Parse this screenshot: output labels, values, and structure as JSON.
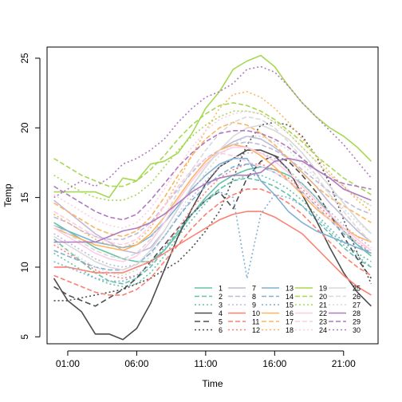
{
  "chart_data": {
    "type": "line",
    "title": "",
    "xlabel": "Time",
    "ylabel": "Temp",
    "x_ticks": [
      {
        "h": 1,
        "label": "01:00"
      },
      {
        "h": 6,
        "label": "06:00"
      },
      {
        "h": 11,
        "label": "11:00"
      },
      {
        "h": 16,
        "label": "16:00"
      },
      {
        "h": 21,
        "label": "21:00"
      }
    ],
    "y_ticks": [
      5,
      10,
      15,
      20,
      25
    ],
    "xlim": [
      -0.5,
      23.5
    ],
    "ylim": [
      4.5,
      25.8
    ],
    "legend_position": "bottom-right",
    "x": [
      0,
      1,
      2,
      3,
      4,
      5,
      6,
      7,
      8,
      9,
      10,
      11,
      12,
      13,
      14,
      15,
      16,
      17,
      18,
      19,
      20,
      21,
      22,
      23
    ],
    "series": [
      {
        "name": "1",
        "color": "#66C2A5",
        "dash": "",
        "values": [
          13.2,
          12.6,
          12.0,
          11.4,
          11.0,
          10.6,
          10.4,
          10.4,
          11.2,
          12.4,
          13.8,
          15.0,
          16.0,
          16.6,
          17.0,
          17.2,
          17.0,
          16.6,
          16.0,
          15.0,
          13.8,
          12.6,
          11.6,
          10.8
        ]
      },
      {
        "name": "2",
        "color": "#66C2A5",
        "dash": "6,3",
        "values": [
          12.0,
          11.2,
          10.4,
          9.6,
          9.0,
          8.8,
          9.2,
          10.0,
          11.2,
          12.6,
          13.8,
          14.8,
          15.6,
          16.2,
          16.4,
          16.2,
          15.8,
          15.2,
          14.4,
          13.4,
          12.4,
          11.4,
          10.6,
          10.0
        ]
      },
      {
        "name": "3",
        "color": "#66C2A5",
        "dash": "2,3",
        "values": [
          11.0,
          10.4,
          9.8,
          9.2,
          8.8,
          8.6,
          8.8,
          9.6,
          10.8,
          12.2,
          13.4,
          14.6,
          15.6,
          16.2,
          16.6,
          16.6,
          16.2,
          15.6,
          14.8,
          13.8,
          12.8,
          11.8,
          11.0,
          10.4
        ]
      },
      {
        "name": "4",
        "color": "#4D4D4D",
        "dash": "",
        "values": [
          9.2,
          7.6,
          6.8,
          5.2,
          5.2,
          4.8,
          5.6,
          7.4,
          9.8,
          12.2,
          14.2,
          16.0,
          17.2,
          17.8,
          18.4,
          18.4,
          18.0,
          17.0,
          15.2,
          13.4,
          11.4,
          9.6,
          8.2,
          7.2
        ]
      },
      {
        "name": "5",
        "color": "#4D4D4D",
        "dash": "7,4",
        "values": [
          8.6,
          8.0,
          7.6,
          7.2,
          7.8,
          8.4,
          9.2,
          10.4,
          11.6,
          12.8,
          13.8,
          14.8,
          15.4,
          14.2,
          16.4,
          17.6,
          18.0,
          17.6,
          16.6,
          15.4,
          13.8,
          12.2,
          10.6,
          9.2
        ]
      },
      {
        "name": "6",
        "color": "#4D4D4D",
        "dash": "2,3",
        "values": [
          7.6,
          7.6,
          7.8,
          8.0,
          8.2,
          8.4,
          8.8,
          9.2,
          9.8,
          10.4,
          11.4,
          12.6,
          14.0,
          16.4,
          18.8,
          20.2,
          20.4,
          20.2,
          19.4,
          18.0,
          16.0,
          13.4,
          11.0,
          8.8
        ]
      },
      {
        "name": "7",
        "color": "#BEBADA",
        "dash": "",
        "values": [
          14.8,
          14.0,
          13.2,
          12.4,
          11.8,
          11.2,
          11.0,
          11.4,
          12.6,
          14.2,
          15.8,
          17.2,
          18.4,
          19.0,
          19.4,
          19.2,
          18.6,
          17.8,
          16.8,
          15.8,
          14.6,
          13.6,
          12.6,
          11.8
        ]
      },
      {
        "name": "8",
        "color": "#BEBADA",
        "dash": "6,3",
        "values": [
          13.6,
          13.2,
          12.6,
          12.2,
          12.0,
          12.0,
          12.4,
          13.2,
          14.4,
          15.6,
          16.8,
          17.8,
          18.4,
          18.8,
          19.0,
          18.8,
          18.4,
          17.8,
          17.0,
          16.2,
          15.4,
          14.8,
          14.2,
          13.8
        ]
      },
      {
        "name": "9",
        "color": "#BEBADA",
        "dash": "2,3",
        "values": [
          12.4,
          11.8,
          11.2,
          10.6,
          10.2,
          10.0,
          10.2,
          11.0,
          12.2,
          13.6,
          15.0,
          16.2,
          17.2,
          17.8,
          18.2,
          18.2,
          17.8,
          17.0,
          16.0,
          15.0,
          14.0,
          13.0,
          12.2,
          11.4
        ]
      },
      {
        "name": "10",
        "color": "#FB8072",
        "dash": "",
        "values": [
          10.0,
          10.0,
          9.8,
          9.6,
          9.6,
          9.6,
          10.0,
          10.4,
          11.0,
          11.6,
          12.2,
          12.8,
          13.4,
          13.8,
          14.0,
          14.0,
          13.6,
          13.0,
          12.4,
          11.4,
          10.4,
          9.4,
          8.6,
          8.0
        ]
      },
      {
        "name": "11",
        "color": "#FB8072",
        "dash": "6,3",
        "values": [
          9.4,
          9.0,
          8.6,
          8.2,
          8.0,
          8.0,
          8.4,
          9.2,
          10.4,
          11.6,
          12.8,
          13.8,
          14.6,
          15.2,
          15.6,
          15.6,
          15.2,
          14.6,
          13.8,
          12.8,
          11.8,
          10.8,
          10.0,
          9.4
        ]
      },
      {
        "name": "12",
        "color": "#FB8072",
        "dash": "2,3",
        "values": [
          11.6,
          11.0,
          10.4,
          9.8,
          9.4,
          9.2,
          9.4,
          10.2,
          11.4,
          12.8,
          14.2,
          15.4,
          16.4,
          17.0,
          17.4,
          17.4,
          17.0,
          16.4,
          15.6,
          14.6,
          13.6,
          12.6,
          11.8,
          11.0
        ]
      },
      {
        "name": "13",
        "color": "#80B1D3",
        "dash": "",
        "values": [
          13.0,
          12.6,
          12.2,
          11.8,
          11.6,
          11.4,
          11.6,
          12.2,
          13.2,
          14.4,
          15.6,
          16.6,
          17.4,
          17.8,
          17.8,
          16.2,
          15.2,
          14.0,
          13.2,
          12.6,
          12.2,
          11.8,
          11.4,
          11.0
        ]
      },
      {
        "name": "14",
        "color": "#80B1D3",
        "dash": "6,3",
        "values": [
          11.2,
          10.8,
          10.4,
          10.0,
          9.8,
          9.8,
          10.2,
          11.0,
          12.2,
          13.6,
          14.8,
          15.8,
          16.6,
          17.2,
          17.4,
          17.2,
          16.8,
          16.2,
          15.4,
          14.4,
          13.4,
          12.4,
          11.6,
          11.0
        ]
      },
      {
        "name": "15",
        "color": "#80B1D3",
        "dash": "2,3",
        "values": [
          10.4,
          10.0,
          9.6,
          9.2,
          9.0,
          9.0,
          9.4,
          10.2,
          11.4,
          12.6,
          13.8,
          14.8,
          15.4,
          15.0,
          9.2,
          13.8,
          15.2,
          15.0,
          14.4,
          13.6,
          12.6,
          11.6,
          10.8,
          10.0
        ]
      },
      {
        "name": "16",
        "color": "#FDB462",
        "dash": "",
        "values": [
          12.8,
          12.4,
          12.0,
          11.6,
          11.4,
          11.2,
          11.6,
          12.4,
          13.6,
          15.0,
          16.4,
          17.6,
          18.4,
          18.8,
          18.6,
          18.0,
          17.2,
          16.2,
          15.2,
          14.2,
          13.4,
          12.8,
          12.2,
          11.8
        ]
      },
      {
        "name": "17",
        "color": "#FDB462",
        "dash": "6,3",
        "values": [
          14.6,
          14.0,
          13.4,
          12.8,
          12.4,
          12.2,
          12.6,
          13.6,
          15.0,
          16.6,
          18.0,
          19.2,
          20.0,
          20.4,
          20.2,
          19.6,
          18.8,
          17.8,
          16.8,
          15.8,
          15.0,
          14.4,
          13.8,
          13.2
        ]
      },
      {
        "name": "18",
        "color": "#FDB462",
        "dash": "2,3",
        "values": [
          13.8,
          13.2,
          12.6,
          12.0,
          11.6,
          11.4,
          11.8,
          12.8,
          14.4,
          16.2,
          18.0,
          19.8,
          21.4,
          22.4,
          22.6,
          22.2,
          21.4,
          20.4,
          19.2,
          18.0,
          16.8,
          15.8,
          14.8,
          14.0
        ]
      },
      {
        "name": "19",
        "color": "#A6D854",
        "dash": "",
        "values": [
          15.4,
          15.4,
          15.4,
          15.4,
          15.0,
          16.4,
          16.2,
          17.4,
          17.6,
          18.2,
          19.6,
          21.4,
          22.6,
          24.2,
          24.8,
          25.2,
          24.4,
          23.0,
          21.8,
          20.8,
          20.0,
          19.4,
          18.6,
          17.6
        ]
      },
      {
        "name": "20",
        "color": "#A6D854",
        "dash": "6,3",
        "values": [
          17.8,
          17.2,
          16.6,
          16.2,
          15.8,
          15.8,
          16.2,
          17.0,
          18.0,
          19.2,
          20.2,
          21.0,
          21.6,
          21.8,
          21.6,
          21.2,
          20.6,
          19.8,
          19.0,
          18.0,
          17.2,
          16.4,
          15.8,
          15.2
        ]
      },
      {
        "name": "21",
        "color": "#A6D854",
        "dash": "2,3",
        "values": [
          16.6,
          16.0,
          15.4,
          15.0,
          14.8,
          14.8,
          15.2,
          16.0,
          17.2,
          18.4,
          19.4,
          20.2,
          20.8,
          21.2,
          21.2,
          21.0,
          20.4,
          19.6,
          18.6,
          17.6,
          16.6,
          15.8,
          15.0,
          14.4
        ]
      },
      {
        "name": "22",
        "color": "#FCCDE5",
        "dash": "",
        "values": [
          12.8,
          12.2,
          11.6,
          11.0,
          10.6,
          10.4,
          10.8,
          11.8,
          13.2,
          14.8,
          16.2,
          17.4,
          18.2,
          18.6,
          18.6,
          18.2,
          17.6,
          16.8,
          15.8,
          14.8,
          13.8,
          12.8,
          12.0,
          11.2
        ]
      },
      {
        "name": "23",
        "color": "#FCCDE5",
        "dash": "6,3",
        "values": [
          14.0,
          13.4,
          12.8,
          12.2,
          11.8,
          11.6,
          12.0,
          13.0,
          14.4,
          15.8,
          17.0,
          17.8,
          18.2,
          18.0,
          17.6,
          17.2,
          16.8,
          16.2,
          15.4,
          14.4,
          13.4,
          12.6,
          11.8,
          11.2
        ]
      },
      {
        "name": "24",
        "color": "#FCCDE5",
        "dash": "2,3",
        "values": [
          15.2,
          14.6,
          14.0,
          13.4,
          13.0,
          12.8,
          13.2,
          14.2,
          15.6,
          17.2,
          18.6,
          19.8,
          20.6,
          21.0,
          21.2,
          21.0,
          20.4,
          19.6,
          18.6,
          17.6,
          16.6,
          15.8,
          15.0,
          14.4
        ]
      },
      {
        "name": "25",
        "color": "#D9D9D9",
        "dash": "",
        "values": [
          12.2,
          11.6,
          11.0,
          10.4,
          10.0,
          9.8,
          10.2,
          11.2,
          12.6,
          14.2,
          15.8,
          17.2,
          18.4,
          19.4,
          20.0,
          20.2,
          19.8,
          19.2,
          18.2,
          17.0,
          15.8,
          14.6,
          13.4,
          12.4
        ]
      },
      {
        "name": "26",
        "color": "#D9D9D9",
        "dash": "6,3",
        "values": [
          13.0,
          12.4,
          11.8,
          11.2,
          10.8,
          10.6,
          11.0,
          12.0,
          13.6,
          15.4,
          17.0,
          18.4,
          19.6,
          20.4,
          20.8,
          20.6,
          20.0,
          19.0,
          17.8,
          16.6,
          15.2,
          14.0,
          12.8,
          11.8
        ]
      },
      {
        "name": "27",
        "color": "#D9D9D9",
        "dash": "2,3",
        "values": [
          11.8,
          11.2,
          10.6,
          10.0,
          9.6,
          9.4,
          9.8,
          10.8,
          12.2,
          13.8,
          15.4,
          16.8,
          18.0,
          18.8,
          19.4,
          19.4,
          19.0,
          18.4,
          17.4,
          16.4,
          15.2,
          14.2,
          13.2,
          12.4
        ]
      },
      {
        "name": "28",
        "color": "#B07AC0",
        "dash": "",
        "values": [
          11.8,
          11.8,
          11.8,
          11.8,
          12.2,
          12.6,
          12.8,
          13.2,
          13.8,
          14.6,
          15.4,
          16.0,
          16.4,
          16.6,
          16.6,
          16.8,
          17.6,
          17.8,
          17.6,
          17.0,
          16.4,
          15.6,
          15.2,
          14.8
        ]
      },
      {
        "name": "29",
        "color": "#B07AC0",
        "dash": "6,3",
        "values": [
          15.8,
          15.2,
          14.6,
          14.0,
          13.6,
          13.4,
          13.8,
          14.8,
          16.0,
          17.2,
          18.2,
          19.0,
          19.6,
          19.8,
          19.8,
          19.6,
          19.2,
          18.6,
          17.8,
          17.0,
          16.4,
          16.0,
          15.8,
          15.6
        ]
      },
      {
        "name": "30",
        "color": "#B07AC0",
        "dash": "2,3",
        "values": [
          15.0,
          15.6,
          16.2,
          15.8,
          16.4,
          17.4,
          17.8,
          18.4,
          19.2,
          20.4,
          21.4,
          22.2,
          22.6,
          23.2,
          24.2,
          24.4,
          24.0,
          23.0,
          21.8,
          20.8,
          19.8,
          18.8,
          17.6,
          16.4
        ]
      }
    ]
  }
}
